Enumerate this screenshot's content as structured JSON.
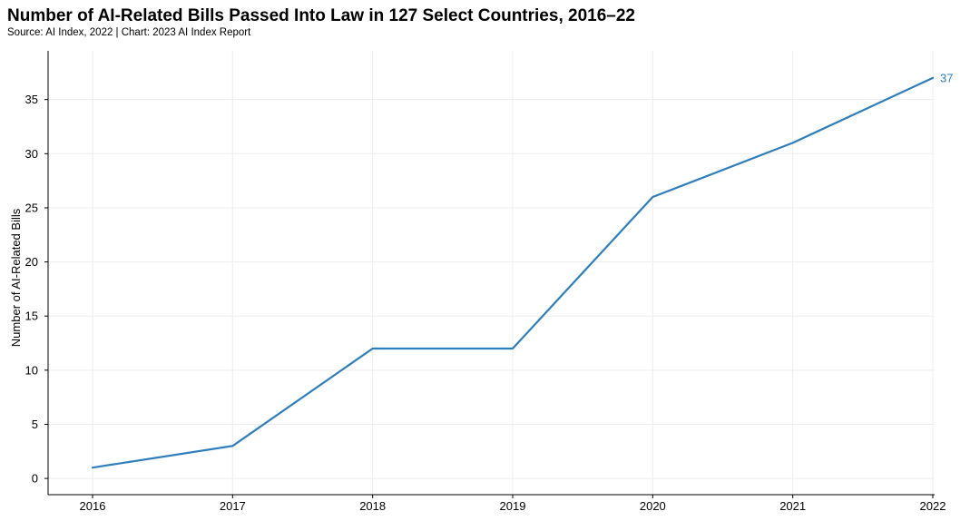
{
  "chart_data": {
    "type": "line",
    "title": "Number of AI-Related Bills Passed Into Law in 127 Select Countries, 2016–22",
    "subtitle": "Source: AI Index, 2022 | Chart: 2023 AI Index Report",
    "xlabel": "",
    "ylabel": "Number of AI-Related Bills",
    "x": [
      "2016",
      "2017",
      "2018",
      "2019",
      "2020",
      "2021",
      "2022"
    ],
    "series": [
      {
        "name": "AI-Related Bills",
        "values": [
          1,
          3,
          12,
          12,
          26,
          31,
          37
        ],
        "color": "#2e7ebc"
      }
    ],
    "yticks": [
      0,
      5,
      10,
      15,
      20,
      25,
      30,
      35
    ],
    "ylim": [
      -1.5,
      39.5
    ],
    "grid": true,
    "end_label": "37"
  }
}
